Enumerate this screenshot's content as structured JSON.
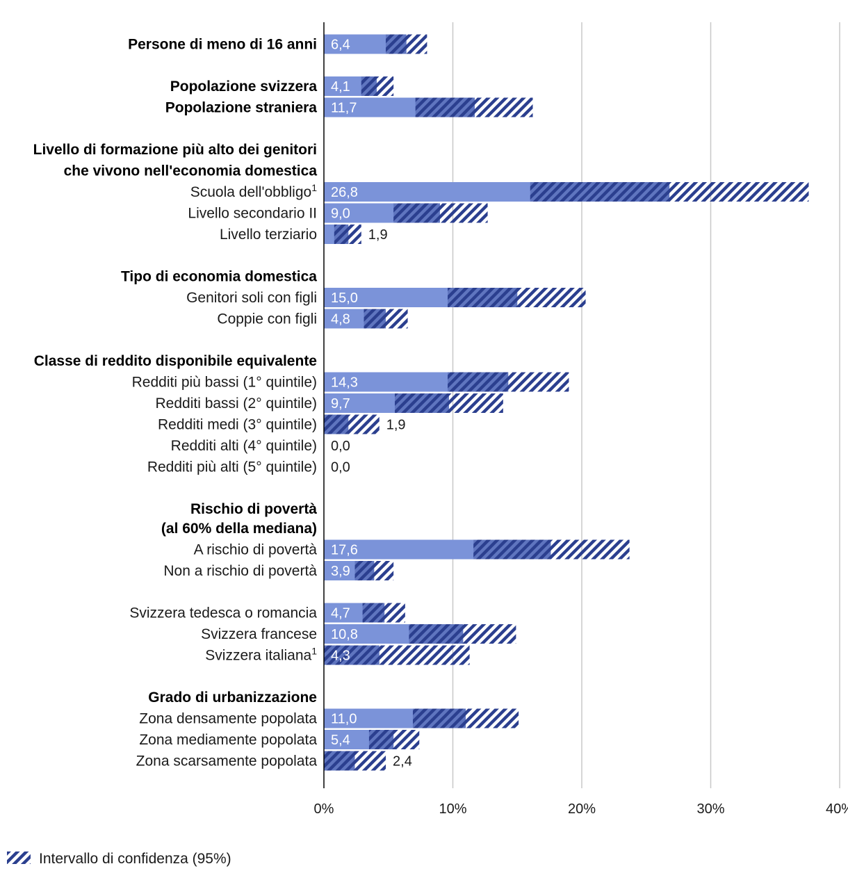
{
  "chart_data": {
    "type": "bar",
    "orientation": "horizontal",
    "x_unit": "%",
    "xlim": [
      0,
      40
    ],
    "x_ticks": [
      0,
      10,
      20,
      30,
      40
    ],
    "x_tick_labels": [
      "0%",
      "10%",
      "20%",
      "30%",
      "40%"
    ],
    "grid": true,
    "legend": {
      "label": "Intervallo di confidenza (95%)",
      "position": "bottom-left"
    },
    "colors": {
      "bar": "#7b93d9",
      "ci": "#2b3f8f",
      "grid": "#c8c8c8",
      "axis": "#000000"
    },
    "rows": [
      {
        "label": "Persone di meno di 16 anni",
        "bold": true,
        "value": 6.4,
        "value_label": "6,4",
        "ci_low": 4.8,
        "ci_high": 8.0,
        "gap_after": true
      },
      {
        "label": "Popolazione svizzera",
        "bold": true,
        "value": 4.1,
        "value_label": "4,1",
        "ci_low": 2.9,
        "ci_high": 5.4
      },
      {
        "label": "Popolazione straniera",
        "bold": true,
        "value": 11.7,
        "value_label": "11,7",
        "ci_low": 7.1,
        "ci_high": 16.2,
        "gap_after": true
      },
      {
        "label": "Livello di formazione più alto dei genitori",
        "header": true
      },
      {
        "label": "che vivono nell'economia domestica",
        "header": true
      },
      {
        "label": "Scuola dell'obbligo",
        "sup": "1",
        "value": 26.8,
        "value_label": "26,8",
        "ci_low": 16.0,
        "ci_high": 37.6
      },
      {
        "label": "Livello secondario II",
        "value": 9.0,
        "value_label": "9,0",
        "ci_low": 5.4,
        "ci_high": 12.7
      },
      {
        "label": "Livello terziario",
        "value": 1.9,
        "value_label": "1,9",
        "ci_low": 0.8,
        "ci_high": 2.9,
        "gap_after": true
      },
      {
        "label": "Tipo di economia domestica",
        "header": true
      },
      {
        "label": "Genitori soli con figli",
        "value": 15.0,
        "value_label": "15,0",
        "ci_low": 9.6,
        "ci_high": 20.3
      },
      {
        "label": "Coppie con figli",
        "value": 4.8,
        "value_label": "4,8",
        "ci_low": 3.1,
        "ci_high": 6.5,
        "gap_after": true
      },
      {
        "label": "Classe di reddito disponibile equivalente",
        "header": true
      },
      {
        "label": "Redditi più bassi (1° quintile)",
        "value": 14.3,
        "value_label": "14,3",
        "ci_low": 9.6,
        "ci_high": 19.0
      },
      {
        "label": "Redditi bassi (2° quintile)",
        "value": 9.7,
        "value_label": "9,7",
        "ci_low": 5.5,
        "ci_high": 13.9
      },
      {
        "label": "Redditi medi (3° quintile)",
        "value": 1.9,
        "value_label": "1,9",
        "ci_low": 0.0,
        "ci_high": 4.3
      },
      {
        "label": "Redditi alti (4° quintile)",
        "value": 0.0,
        "value_label": "0,0",
        "ci_low": 0.0,
        "ci_high": 0.0
      },
      {
        "label": "Redditi più alti (5° quintile)",
        "value": 0.0,
        "value_label": "0,0",
        "ci_low": 0.0,
        "ci_high": 0.0,
        "gap_after": true
      },
      {
        "label": "Rischio di povertà",
        "header": true
      },
      {
        "label": "(al 60% della mediana)",
        "header": true,
        "tight": true
      },
      {
        "label": "A rischio di povertà",
        "value": 17.6,
        "value_label": "17,6",
        "ci_low": 11.6,
        "ci_high": 23.7
      },
      {
        "label": "Non a rischio di povertà",
        "value": 3.9,
        "value_label": "3,9",
        "ci_low": 2.4,
        "ci_high": 5.4,
        "gap_after": true
      },
      {
        "label": "Svizzera tedesca o romancia",
        "value": 4.7,
        "value_label": "4,7",
        "ci_low": 3.0,
        "ci_high": 6.3
      },
      {
        "label": "Svizzera francese",
        "value": 10.8,
        "value_label": "10,8",
        "ci_low": 6.6,
        "ci_high": 14.9
      },
      {
        "label": "Svizzera italiana",
        "sup": "1",
        "value": 4.3,
        "value_label": "4,3",
        "ci_low": 0.0,
        "ci_high": 11.3,
        "gap_after": true
      },
      {
        "label": "Grado di urbanizzazione",
        "header": true
      },
      {
        "label": "Zona densamente popolata",
        "value": 11.0,
        "value_label": "11,0",
        "ci_low": 6.9,
        "ci_high": 15.1
      },
      {
        "label": "Zona mediamente popolata",
        "value": 5.4,
        "value_label": "5,4",
        "ci_low": 3.5,
        "ci_high": 7.4
      },
      {
        "label": "Zona scarsamente popolata",
        "value": 2.4,
        "value_label": "2,4",
        "ci_low": 0.0,
        "ci_high": 4.8
      }
    ]
  }
}
